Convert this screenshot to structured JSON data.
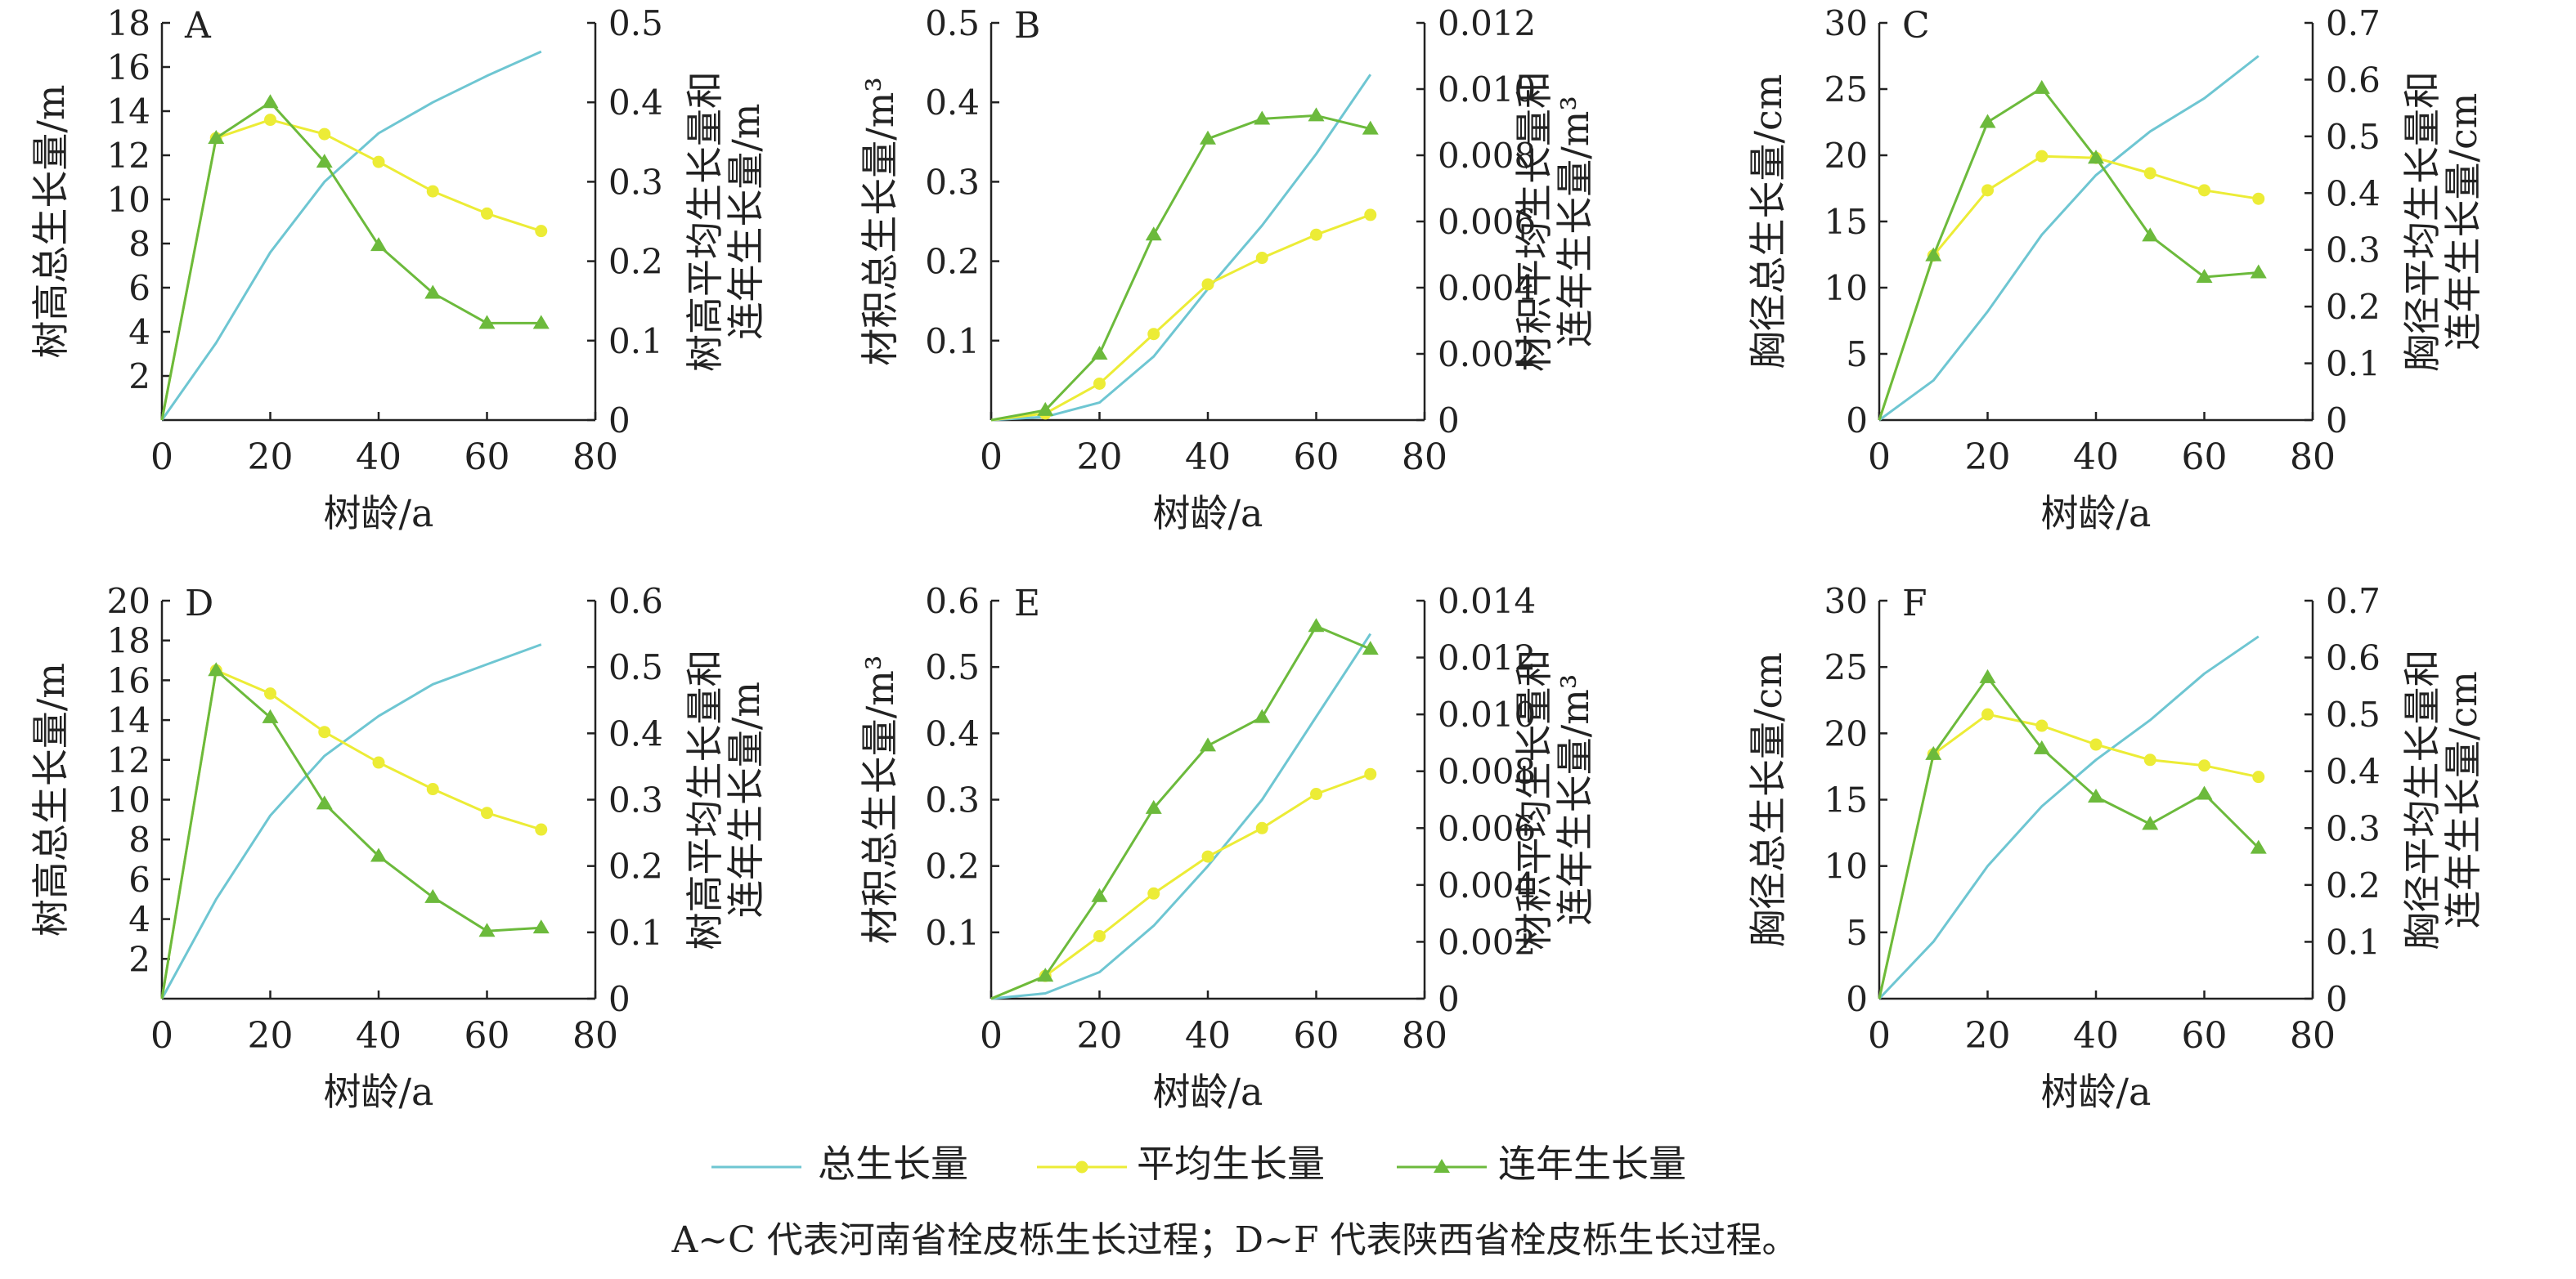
{
  "legend": {
    "total_label": "总生长量",
    "avg_label": "平均生长量",
    "annual_label": "连年生长量"
  },
  "caption": "A~C 代表河南省栓皮栎生长过程；D~F 代表陕西省栓皮栎生长过程。",
  "colors": {
    "total": "#6ec6d2",
    "avg": "#ecec36",
    "annual": "#6cba3c",
    "axis": "#222222"
  },
  "chart_data": [
    {
      "id": "A",
      "type": "line",
      "panel_label": "A",
      "xlabel": "树龄/a",
      "xlim": [
        0,
        80
      ],
      "xticks": [
        0,
        20,
        40,
        60,
        80
      ],
      "ylabel_left": "树高总生长量/m",
      "ylim_left": [
        0,
        18
      ],
      "yticks_left": [
        2,
        4,
        6,
        8,
        10,
        12,
        14,
        16,
        18
      ],
      "left_origin_label": "",
      "ylabel_right": [
        "树高平均生长量和",
        "连年生长量/m"
      ],
      "ylim_right": [
        0,
        0.5
      ],
      "yticks_right": [
        "0",
        "0.1",
        "0.2",
        "0.3",
        "0.4",
        "0.5"
      ],
      "series": [
        {
          "name": "总生长量",
          "axis": "left",
          "x": [
            0,
            10,
            20,
            30,
            40,
            50,
            60,
            70
          ],
          "values": [
            0,
            3.5,
            7.6,
            10.8,
            13.0,
            14.4,
            15.6,
            16.7
          ]
        },
        {
          "name": "平均生长量",
          "axis": "right",
          "x": [
            0,
            10,
            20,
            30,
            40,
            50,
            60,
            70
          ],
          "values": [
            0,
            0.355,
            0.378,
            0.36,
            0.325,
            0.288,
            0.26,
            0.238
          ]
        },
        {
          "name": "连年生长量",
          "axis": "right",
          "x": [
            0,
            10,
            20,
            30,
            40,
            50,
            60,
            70
          ],
          "values": [
            0,
            0.355,
            0.4,
            0.325,
            0.22,
            0.16,
            0.122,
            0.122
          ]
        }
      ]
    },
    {
      "id": "B",
      "type": "line",
      "panel_label": "B",
      "xlabel": "树龄/a",
      "xlim": [
        0,
        80
      ],
      "xticks": [
        0,
        20,
        40,
        60,
        80
      ],
      "ylabel_left": "材积总生长量/m³",
      "ylim_left": [
        0,
        0.5
      ],
      "yticks_left": [
        0.1,
        0.2,
        0.3,
        0.4,
        0.5
      ],
      "left_origin_label": "",
      "ylabel_right": [
        "材积平均生长量和",
        "连年生长量/m³"
      ],
      "ylim_right": [
        0,
        0.012
      ],
      "yticks_right": [
        "0",
        "0.002",
        "0.004",
        "0.006",
        "0.008",
        "0.010",
        "0.012"
      ],
      "series": [
        {
          "name": "总生长量",
          "axis": "left",
          "x": [
            0,
            10,
            20,
            30,
            40,
            50,
            60,
            70
          ],
          "values": [
            0,
            0.004,
            0.022,
            0.08,
            0.165,
            0.245,
            0.335,
            0.435
          ]
        },
        {
          "name": "平均生长量",
          "axis": "right",
          "x": [
            0,
            10,
            20,
            30,
            40,
            50,
            60,
            70
          ],
          "values": [
            0,
            0.0002,
            0.0011,
            0.0026,
            0.0041,
            0.0049,
            0.0056,
            0.0062
          ]
        },
        {
          "name": "连年生长量",
          "axis": "right",
          "x": [
            0,
            10,
            20,
            30,
            40,
            50,
            60,
            70
          ],
          "values": [
            0,
            0.0003,
            0.002,
            0.0056,
            0.0085,
            0.0091,
            0.0092,
            0.0088
          ]
        }
      ]
    },
    {
      "id": "C",
      "type": "line",
      "panel_label": "C",
      "xlabel": "树龄/a",
      "xlim": [
        0,
        80
      ],
      "xticks": [
        0,
        20,
        40,
        60,
        80
      ],
      "ylabel_left": "胸径总生长量/cm",
      "ylim_left": [
        0,
        30
      ],
      "yticks_left": [
        5,
        10,
        15,
        20,
        25,
        30
      ],
      "left_origin_label": "0",
      "ylabel_right": [
        "胸径平均生长量和",
        "连年生长量/cm"
      ],
      "ylim_right": [
        0,
        0.7
      ],
      "yticks_right": [
        "0",
        "0.1",
        "0.2",
        "0.3",
        "0.4",
        "0.5",
        "0.6",
        "0.7"
      ],
      "series": [
        {
          "name": "总生长量",
          "axis": "left",
          "x": [
            0,
            10,
            20,
            30,
            40,
            50,
            60,
            70
          ],
          "values": [
            0,
            3.0,
            8.2,
            14.0,
            18.5,
            21.8,
            24.3,
            27.5
          ]
        },
        {
          "name": "平均生长量",
          "axis": "right",
          "x": [
            0,
            10,
            20,
            30,
            40,
            50,
            60,
            70
          ],
          "values": [
            0,
            0.29,
            0.405,
            0.465,
            0.462,
            0.435,
            0.405,
            0.39
          ]
        },
        {
          "name": "连年生长量",
          "axis": "right",
          "x": [
            0,
            10,
            20,
            30,
            40,
            50,
            60,
            70
          ],
          "values": [
            0,
            0.29,
            0.525,
            0.585,
            0.462,
            0.325,
            0.252,
            0.26
          ]
        }
      ]
    },
    {
      "id": "D",
      "type": "line",
      "panel_label": "D",
      "xlabel": "树龄/a",
      "xlim": [
        0,
        80
      ],
      "xticks": [
        0,
        20,
        40,
        60,
        80
      ],
      "ylabel_left": "树高总生长量/m",
      "ylim_left": [
        0,
        20
      ],
      "yticks_left": [
        2,
        4,
        6,
        8,
        10,
        12,
        14,
        16,
        18,
        20
      ],
      "left_origin_label": "",
      "ylabel_right": [
        "树高平均生长量和",
        "连年生长量/m"
      ],
      "ylim_right": [
        0,
        0.6
      ],
      "yticks_right": [
        "0",
        "0.1",
        "0.2",
        "0.3",
        "0.4",
        "0.5",
        "0.6"
      ],
      "series": [
        {
          "name": "总生长量",
          "axis": "left",
          "x": [
            0,
            10,
            20,
            30,
            40,
            50,
            60,
            70
          ],
          "values": [
            0,
            5.0,
            9.2,
            12.2,
            14.2,
            15.8,
            16.8,
            17.8
          ]
        },
        {
          "name": "平均生长量",
          "axis": "right",
          "x": [
            0,
            10,
            20,
            30,
            40,
            50,
            60,
            70
          ],
          "values": [
            0,
            0.495,
            0.46,
            0.402,
            0.356,
            0.316,
            0.28,
            0.255
          ]
        },
        {
          "name": "连年生长量",
          "axis": "right",
          "x": [
            0,
            10,
            20,
            30,
            40,
            50,
            60,
            70
          ],
          "values": [
            0,
            0.495,
            0.424,
            0.294,
            0.215,
            0.153,
            0.102,
            0.107
          ]
        }
      ]
    },
    {
      "id": "E",
      "type": "line",
      "panel_label": "E",
      "xlabel": "树龄/a",
      "xlim": [
        0,
        80
      ],
      "xticks": [
        0,
        20,
        40,
        60,
        80
      ],
      "ylabel_left": "材积总生长量/m³",
      "ylim_left": [
        0,
        0.6
      ],
      "yticks_left": [
        0.1,
        0.2,
        0.3,
        0.4,
        0.5,
        0.6
      ],
      "left_origin_label": "",
      "ylabel_right": [
        "材积平均生长量和",
        "连年生长量/m³"
      ],
      "ylim_right": [
        0,
        0.014
      ],
      "yticks_right": [
        "0",
        "0.002",
        "0.004",
        "0.006",
        "0.008",
        "0.010",
        "0.012",
        "0.014"
      ],
      "series": [
        {
          "name": "总生长量",
          "axis": "left",
          "x": [
            0,
            10,
            20,
            30,
            40,
            50,
            60,
            70
          ],
          "values": [
            0,
            0.008,
            0.04,
            0.11,
            0.2,
            0.3,
            0.425,
            0.55
          ]
        },
        {
          "name": "平均生长量",
          "axis": "right",
          "x": [
            0,
            10,
            20,
            30,
            40,
            50,
            60,
            70
          ],
          "values": [
            0,
            0.0008,
            0.0022,
            0.0037,
            0.005,
            0.006,
            0.0072,
            0.0079
          ]
        },
        {
          "name": "连年生长量",
          "axis": "right",
          "x": [
            0,
            10,
            20,
            30,
            40,
            50,
            60,
            70
          ],
          "values": [
            0,
            0.0008,
            0.0036,
            0.0067,
            0.0089,
            0.0099,
            0.0131,
            0.0123
          ]
        }
      ]
    },
    {
      "id": "F",
      "type": "line",
      "panel_label": "F",
      "xlabel": "树龄/a",
      "xlim": [
        0,
        80
      ],
      "xticks": [
        0,
        20,
        40,
        60,
        80
      ],
      "ylabel_left": "胸径总生长量/cm",
      "ylim_left": [
        0,
        30
      ],
      "yticks_left": [
        5,
        10,
        15,
        20,
        25,
        30
      ],
      "left_origin_label": "0",
      "ylabel_right": [
        "胸径平均生长量和",
        "连年生长量/cm"
      ],
      "ylim_right": [
        0,
        0.7
      ],
      "yticks_right": [
        "0",
        "0.1",
        "0.2",
        "0.3",
        "0.4",
        "0.5",
        "0.6",
        "0.7"
      ],
      "series": [
        {
          "name": "总生长量",
          "axis": "left",
          "x": [
            0,
            10,
            20,
            30,
            40,
            50,
            60,
            70
          ],
          "values": [
            0,
            4.3,
            10.0,
            14.5,
            18.0,
            21.0,
            24.5,
            27.3
          ]
        },
        {
          "name": "平均生长量",
          "axis": "right",
          "x": [
            0,
            10,
            20,
            30,
            40,
            50,
            60,
            70
          ],
          "values": [
            0,
            0.43,
            0.5,
            0.48,
            0.447,
            0.42,
            0.41,
            0.39
          ]
        },
        {
          "name": "连年生长量",
          "axis": "right",
          "x": [
            0,
            10,
            20,
            30,
            40,
            50,
            60,
            70
          ],
          "values": [
            0,
            0.43,
            0.565,
            0.44,
            0.355,
            0.307,
            0.36,
            0.265
          ]
        }
      ]
    }
  ]
}
